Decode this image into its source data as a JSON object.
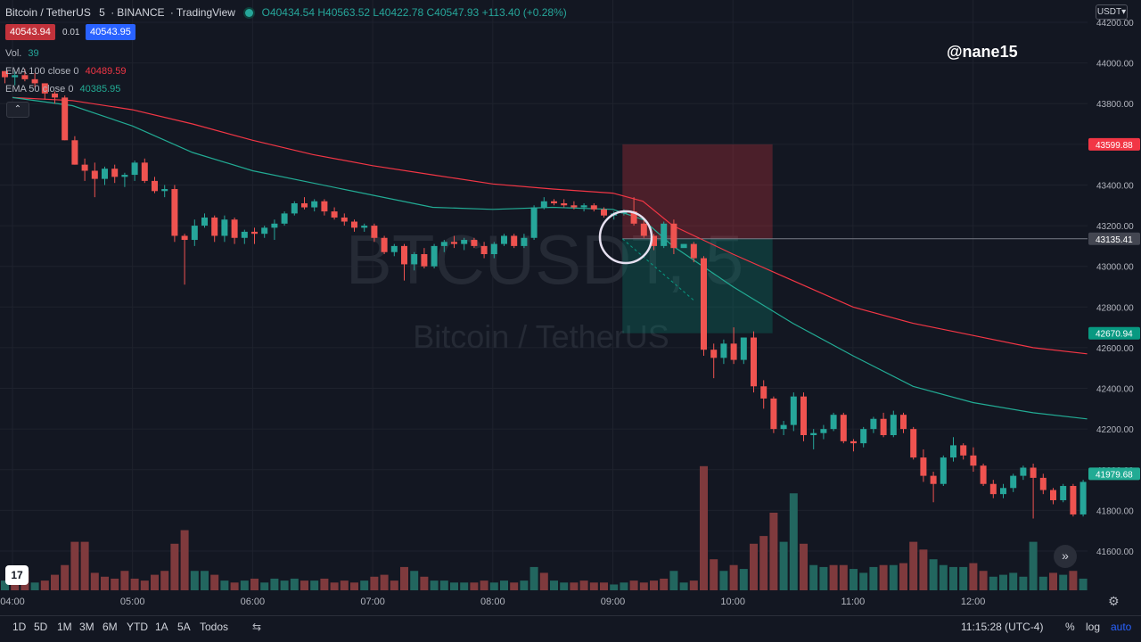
{
  "header": {
    "symbol": "Bitcoin / TetherUS",
    "interval": "5",
    "exchange": "BINANCE",
    "platform": "TradingView",
    "ohlc": {
      "o": "O40434.54",
      "h": "H40563.52",
      "l": "L40422.78",
      "c": "C40547.93",
      "change": "+113.40 (+0.28%)"
    },
    "bid": "40543.94",
    "spread": "0.01",
    "ask": "40543.95"
  },
  "indicators": {
    "volume": {
      "label": "Vol.",
      "value": "39"
    },
    "ema100": {
      "label": "EMA 100 close 0",
      "value": "40489.59",
      "color": "#f23645"
    },
    "ema50": {
      "label": "EMA 50 close 0",
      "value": "40385.95",
      "color": "#22ab94"
    }
  },
  "watermark": {
    "text": "@nane15"
  },
  "price_axis": {
    "currency": "USDT",
    "stop_label": "43599.88",
    "entry_label": "43135.41",
    "target_label": "42670.94",
    "last_label": "41979.68"
  },
  "time_axis": {
    "clock": "11:15:28 (UTC-4)",
    "percent_label": "%",
    "log_label": "log",
    "auto_label": "auto"
  },
  "timeframes": [
    "1D",
    "5D",
    "1M",
    "3M",
    "6M",
    "YTD",
    "1A",
    "5A",
    "Todos"
  ],
  "colors": {
    "up": "#26a69a",
    "down": "#ef5350",
    "vol_up": "#22665f",
    "vol_down": "#7f3a3d",
    "background": "#131722"
  },
  "icons": [
    "tradingview-logo-icon",
    "scroll-right-icon",
    "settings-icon",
    "compare-icon"
  ],
  "chart_data": {
    "type": "candlestick",
    "candle_time_hours": [
      4.0,
      5.0,
      6.0,
      7.0,
      8.0,
      9.0,
      10.0,
      11.0,
      12.0
    ],
    "x_ticks": [
      "04:00",
      "05:00",
      "06:00",
      "07:00",
      "08:00",
      "09:00",
      "10:00",
      "11:00",
      "12:00"
    ],
    "y_ticks": [
      44200,
      44000,
      43800,
      43600,
      43400,
      43200,
      43000,
      42800,
      42600,
      42400,
      42200,
      42000,
      41800,
      41600
    ],
    "y_tick_labels": [
      "44200.00",
      "44000.00",
      "43800.00",
      "43600.00",
      "43400.00",
      "43200.00",
      "43000.00",
      "42800.00",
      "42600.00",
      "42400.00",
      "42200.00",
      "42000.00",
      "41800.00",
      "41600.00"
    ],
    "ylim": [
      41510,
      44260
    ],
    "candles": [
      [
        43960,
        43960,
        43900,
        43930
      ],
      [
        43930,
        43960,
        43890,
        43940
      ],
      [
        43940,
        43970,
        43910,
        43920
      ],
      [
        43920,
        43950,
        43880,
        43900
      ],
      [
        43900,
        43900,
        43820,
        43850
      ],
      [
        43850,
        43860,
        43800,
        43830
      ],
      [
        43830,
        43840,
        43620,
        43620
      ],
      [
        43620,
        43640,
        43500,
        43500
      ],
      [
        43500,
        43530,
        43420,
        43470
      ],
      [
        43470,
        43510,
        43340,
        43430
      ],
      [
        43430,
        43490,
        43400,
        43480
      ],
      [
        43480,
        43500,
        43410,
        43440
      ],
      [
        43440,
        43460,
        43390,
        43450
      ],
      [
        43450,
        43520,
        43420,
        43510
      ],
      [
        43510,
        43530,
        43410,
        43420
      ],
      [
        43420,
        43440,
        43360,
        43370
      ],
      [
        43370,
        43400,
        43340,
        43380
      ],
      [
        43380,
        43400,
        43120,
        43150
      ],
      [
        43150,
        43160,
        42910,
        43130
      ],
      [
        43130,
        43230,
        43100,
        43200
      ],
      [
        43200,
        43260,
        43190,
        43240
      ],
      [
        43240,
        43250,
        43120,
        43150
      ],
      [
        43150,
        43250,
        43120,
        43230
      ],
      [
        43230,
        43240,
        43110,
        43140
      ],
      [
        43140,
        43180,
        43110,
        43170
      ],
      [
        43170,
        43190,
        43110,
        43160
      ],
      [
        43160,
        43200,
        43140,
        43190
      ],
      [
        43190,
        43230,
        43130,
        43210
      ],
      [
        43210,
        43270,
        43200,
        43260
      ],
      [
        43260,
        43320,
        43250,
        43310
      ],
      [
        43310,
        43340,
        43280,
        43290
      ],
      [
        43290,
        43330,
        43270,
        43320
      ],
      [
        43320,
        43330,
        43250,
        43270
      ],
      [
        43270,
        43290,
        43230,
        43240
      ],
      [
        43240,
        43260,
        43200,
        43220
      ],
      [
        43220,
        43230,
        43170,
        43190
      ],
      [
        43190,
        43210,
        43170,
        43200
      ],
      [
        43200,
        43210,
        43120,
        43140
      ],
      [
        43140,
        43150,
        43060,
        43070
      ],
      [
        43070,
        43110,
        43050,
        43100
      ],
      [
        43100,
        43110,
        42930,
        43010
      ],
      [
        43010,
        43070,
        42980,
        43060
      ],
      [
        43060,
        43090,
        42990,
        43000
      ],
      [
        43000,
        43110,
        42990,
        43100
      ],
      [
        43100,
        43130,
        43070,
        43120
      ],
      [
        43120,
        43150,
        43090,
        43110
      ],
      [
        43110,
        43140,
        43080,
        43130
      ],
      [
        43130,
        43140,
        43090,
        43100
      ],
      [
        43100,
        43120,
        43040,
        43060
      ],
      [
        43060,
        43120,
        43040,
        43110
      ],
      [
        43110,
        43160,
        43100,
        43150
      ],
      [
        43150,
        43160,
        43090,
        43100
      ],
      [
        43100,
        43160,
        43090,
        43140
      ],
      [
        43140,
        43300,
        43130,
        43290
      ],
      [
        43290,
        43340,
        43280,
        43320
      ],
      [
        43320,
        43330,
        43300,
        43310
      ],
      [
        43310,
        43330,
        43290,
        43300
      ],
      [
        43300,
        43320,
        43280,
        43290
      ],
      [
        43290,
        43310,
        43270,
        43300
      ],
      [
        43300,
        43310,
        43270,
        43280
      ],
      [
        43280,
        43290,
        43240,
        43250
      ],
      [
        43250,
        43270,
        43230,
        43260
      ],
      [
        43260,
        43280,
        43250,
        43270
      ],
      [
        43270,
        43340,
        43200,
        43210
      ],
      [
        43210,
        43230,
        43140,
        43150
      ],
      [
        43150,
        43160,
        43080,
        43100
      ],
      [
        43100,
        43220,
        43090,
        43210
      ],
      [
        43210,
        43230,
        43060,
        43090
      ],
      [
        43090,
        43110,
        43100,
        43110
      ],
      [
        43110,
        43120,
        43020,
        43040
      ],
      [
        43040,
        43050,
        42560,
        42590
      ],
      [
        42590,
        42620,
        42450,
        42550
      ],
      [
        42550,
        42640,
        42520,
        42620
      ],
      [
        42620,
        42700,
        42520,
        42540
      ],
      [
        42540,
        42650,
        42520,
        42650
      ],
      [
        42650,
        42680,
        42380,
        42410
      ],
      [
        42410,
        42440,
        42300,
        42350
      ],
      [
        42350,
        42360,
        42180,
        42200
      ],
      [
        42200,
        42240,
        42170,
        42220
      ],
      [
        42220,
        42380,
        42190,
        42360
      ],
      [
        42360,
        42380,
        42140,
        42170
      ],
      [
        42170,
        42200,
        42100,
        42180
      ],
      [
        42180,
        42220,
        42150,
        42200
      ],
      [
        42200,
        42280,
        42190,
        42270
      ],
      [
        42270,
        42280,
        42130,
        42140
      ],
      [
        42140,
        42150,
        42090,
        42130
      ],
      [
        42130,
        42210,
        42110,
        42200
      ],
      [
        42200,
        42260,
        42180,
        42250
      ],
      [
        42250,
        42280,
        42160,
        42170
      ],
      [
        42170,
        42290,
        42160,
        42270
      ],
      [
        42270,
        42280,
        42180,
        42200
      ],
      [
        42200,
        42210,
        42050,
        42060
      ],
      [
        42060,
        42100,
        41940,
        41970
      ],
      [
        41970,
        41990,
        41840,
        41930
      ],
      [
        41930,
        42070,
        41920,
        42060
      ],
      [
        42060,
        42160,
        42040,
        42120
      ],
      [
        42120,
        42130,
        42050,
        42070
      ],
      [
        42070,
        42110,
        41990,
        42020
      ],
      [
        42020,
        42030,
        41920,
        41930
      ],
      [
        41930,
        41950,
        41860,
        41880
      ],
      [
        41880,
        41930,
        41860,
        41910
      ],
      [
        41910,
        41980,
        41890,
        41970
      ],
      [
        41970,
        42020,
        41950,
        42010
      ],
      [
        42010,
        42030,
        41760,
        41960
      ],
      [
        41960,
        41980,
        41880,
        41900
      ],
      [
        41900,
        41910,
        41830,
        41850
      ],
      [
        41850,
        41930,
        41840,
        41920
      ],
      [
        41920,
        41930,
        41770,
        41780
      ],
      [
        41780,
        41950,
        41770,
        41940
      ],
      [
        41940,
        41950,
        41700,
        41720
      ],
      [
        41720,
        41840,
        41710,
        41830
      ],
      [
        41830,
        42060,
        41820,
        42050
      ],
      [
        42050,
        42070,
        41950,
        42010
      ],
      [
        42010,
        42040,
        41930,
        41950
      ],
      [
        41950,
        42050,
        41920,
        42040
      ],
      [
        42040,
        42060,
        41990,
        42010
      ],
      [
        42010,
        42070,
        41870,
        41990
      ],
      [
        41990,
        42060,
        41980,
        42050
      ],
      [
        42050,
        42070,
        42010,
        42040
      ],
      [
        42040,
        42100,
        42020,
        42090
      ],
      [
        42090,
        42110,
        41980,
        41990
      ],
      [
        41990,
        42010,
        41890,
        41980
      ]
    ],
    "volumes": [
      [
        5,
        "up"
      ],
      [
        6,
        "down"
      ],
      [
        10,
        "down"
      ],
      [
        4,
        "up"
      ],
      [
        5,
        "down"
      ],
      [
        8,
        "down"
      ],
      [
        13,
        "down"
      ],
      [
        25,
        "down"
      ],
      [
        25,
        "down"
      ],
      [
        9,
        "down"
      ],
      [
        7,
        "down"
      ],
      [
        6,
        "down"
      ],
      [
        10,
        "down"
      ],
      [
        6,
        "down"
      ],
      [
        5,
        "down"
      ],
      [
        8,
        "down"
      ],
      [
        10,
        "down"
      ],
      [
        24,
        "down"
      ],
      [
        31,
        "down"
      ],
      [
        10,
        "up"
      ],
      [
        10,
        "up"
      ],
      [
        8,
        "down"
      ],
      [
        5,
        "up"
      ],
      [
        4,
        "down"
      ],
      [
        5,
        "up"
      ],
      [
        6,
        "down"
      ],
      [
        4,
        "up"
      ],
      [
        6,
        "up"
      ],
      [
        5,
        "up"
      ],
      [
        6,
        "up"
      ],
      [
        5,
        "down"
      ],
      [
        5,
        "up"
      ],
      [
        6,
        "down"
      ],
      [
        4,
        "down"
      ],
      [
        5,
        "down"
      ],
      [
        4,
        "down"
      ],
      [
        5,
        "up"
      ],
      [
        7,
        "down"
      ],
      [
        8,
        "down"
      ],
      [
        5,
        "down"
      ],
      [
        12,
        "down"
      ],
      [
        10,
        "up"
      ],
      [
        7,
        "down"
      ],
      [
        5,
        "up"
      ],
      [
        5,
        "up"
      ],
      [
        4,
        "up"
      ],
      [
        4,
        "up"
      ],
      [
        4,
        "down"
      ],
      [
        5,
        "down"
      ],
      [
        4,
        "up"
      ],
      [
        5,
        "up"
      ],
      [
        4,
        "down"
      ],
      [
        5,
        "up"
      ],
      [
        12,
        "up"
      ],
      [
        9,
        "down"
      ],
      [
        5,
        "up"
      ],
      [
        4,
        "up"
      ],
      [
        4,
        "down"
      ],
      [
        5,
        "down"
      ],
      [
        4,
        "down"
      ],
      [
        4,
        "down"
      ],
      [
        3,
        "up"
      ],
      [
        4,
        "up"
      ],
      [
        5,
        "down"
      ],
      [
        4,
        "down"
      ],
      [
        5,
        "down"
      ],
      [
        6,
        "down"
      ],
      [
        10,
        "up"
      ],
      [
        4,
        "up"
      ],
      [
        5,
        "down"
      ],
      [
        64,
        "down"
      ],
      [
        16,
        "down"
      ],
      [
        10,
        "up"
      ],
      [
        13,
        "down"
      ],
      [
        11,
        "up"
      ],
      [
        24,
        "down"
      ],
      [
        28,
        "down"
      ],
      [
        40,
        "down"
      ],
      [
        25,
        "up"
      ],
      [
        50,
        "up"
      ],
      [
        24,
        "down"
      ],
      [
        13,
        "up"
      ],
      [
        12,
        "up"
      ],
      [
        13,
        "down"
      ],
      [
        13,
        "down"
      ],
      [
        11,
        "up"
      ],
      [
        9,
        "up"
      ],
      [
        12,
        "up"
      ],
      [
        13,
        "down"
      ],
      [
        13,
        "up"
      ],
      [
        14,
        "down"
      ],
      [
        25,
        "down"
      ],
      [
        21,
        "down"
      ],
      [
        16,
        "up"
      ],
      [
        13,
        "up"
      ],
      [
        12,
        "up"
      ],
      [
        12,
        "up"
      ],
      [
        14,
        "down"
      ],
      [
        10,
        "down"
      ],
      [
        7,
        "up"
      ],
      [
        8,
        "up"
      ],
      [
        9,
        "up"
      ],
      [
        7,
        "up"
      ],
      [
        25,
        "up"
      ],
      [
        7,
        "up"
      ],
      [
        9,
        "down"
      ],
      [
        8,
        "up"
      ],
      [
        10,
        "down"
      ],
      [
        6,
        "up"
      ],
      [
        12,
        "down"
      ],
      [
        5,
        "up"
      ],
      [
        17,
        "up"
      ],
      [
        28,
        "up"
      ],
      [
        5,
        "down"
      ],
      [
        10,
        "up"
      ],
      [
        6,
        "up"
      ],
      [
        5,
        "down"
      ],
      [
        9,
        "up"
      ],
      [
        4,
        "up"
      ],
      [
        5,
        "up"
      ],
      [
        5,
        "down"
      ],
      [
        7,
        "up"
      ]
    ],
    "ema100": [
      [
        4.0,
        43830
      ],
      [
        4.5,
        43815
      ],
      [
        5.0,
        43770
      ],
      [
        5.5,
        43700
      ],
      [
        6.0,
        43620
      ],
      [
        6.5,
        43550
      ],
      [
        7.0,
        43495
      ],
      [
        7.5,
        43450
      ],
      [
        8.0,
        43405
      ],
      [
        8.5,
        43380
      ],
      [
        9.0,
        43360
      ],
      [
        9.25,
        43320
      ],
      [
        9.5,
        43200
      ],
      [
        10.0,
        43060
      ],
      [
        10.5,
        42930
      ],
      [
        11.0,
        42800
      ],
      [
        11.5,
        42720
      ],
      [
        12.0,
        42660
      ],
      [
        12.5,
        42600
      ],
      [
        12.95,
        42570
      ]
    ],
    "ema50": [
      [
        4.0,
        43830
      ],
      [
        4.5,
        43790
      ],
      [
        5.0,
        43690
      ],
      [
        5.5,
        43560
      ],
      [
        6.0,
        43470
      ],
      [
        6.5,
        43410
      ],
      [
        7.0,
        43350
      ],
      [
        7.5,
        43290
      ],
      [
        8.0,
        43280
      ],
      [
        8.5,
        43290
      ],
      [
        9.0,
        43280
      ],
      [
        9.25,
        43230
      ],
      [
        9.5,
        43100
      ],
      [
        10.0,
        42900
      ],
      [
        10.5,
        42720
      ],
      [
        11.0,
        42560
      ],
      [
        11.5,
        42410
      ],
      [
        12.0,
        42330
      ],
      [
        12.5,
        42280
      ],
      [
        12.95,
        42250
      ]
    ],
    "position": {
      "type": "short",
      "entry": 43135.41,
      "stop": 43599.88,
      "target": 42670.94,
      "start_hour": 9.08,
      "end_hour": 10.33
    }
  }
}
